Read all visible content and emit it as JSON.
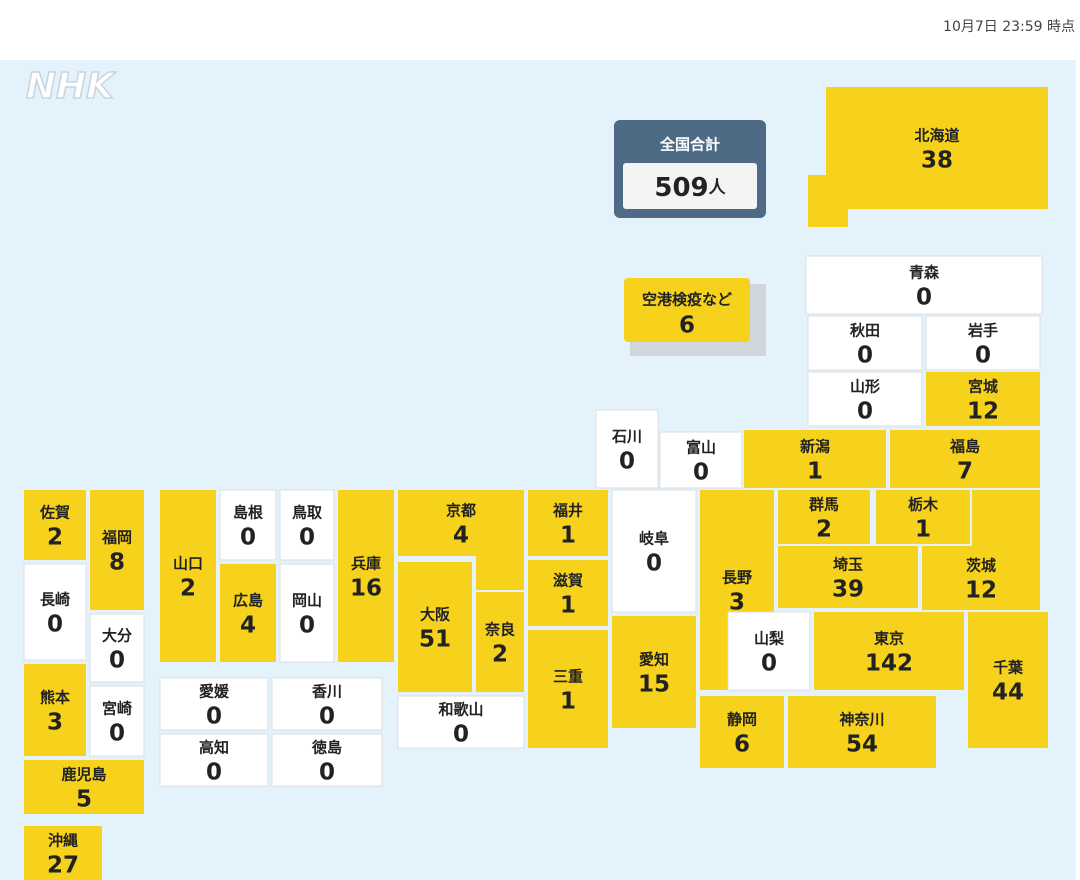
{
  "timestamp": "10月7日 23:59 時点",
  "logo": "NHK",
  "total": {
    "label": "全国合計",
    "count": 509,
    "unit": "人"
  },
  "airport": {
    "label": "空港検疫など",
    "count": 6
  },
  "prefectures": [
    {
      "name": "北海道",
      "count": 38
    },
    {
      "name": "青森",
      "count": 0
    },
    {
      "name": "秋田",
      "count": 0
    },
    {
      "name": "岩手",
      "count": 0
    },
    {
      "name": "山形",
      "count": 0
    },
    {
      "name": "宮城",
      "count": 12
    },
    {
      "name": "石川",
      "count": 0
    },
    {
      "name": "富山",
      "count": 0
    },
    {
      "name": "新潟",
      "count": 1
    },
    {
      "name": "福島",
      "count": 7
    },
    {
      "name": "群馬",
      "count": 2
    },
    {
      "name": "栃木",
      "count": 1
    },
    {
      "name": "茨城",
      "count": 12
    },
    {
      "name": "長野",
      "count": 3
    },
    {
      "name": "埼玉",
      "count": 39
    },
    {
      "name": "山梨",
      "count": 0
    },
    {
      "name": "東京",
      "count": 142
    },
    {
      "name": "千葉",
      "count": 44
    },
    {
      "name": "静岡",
      "count": 6
    },
    {
      "name": "神奈川",
      "count": 54
    },
    {
      "name": "岐阜",
      "count": 0
    },
    {
      "name": "愛知",
      "count": 15
    },
    {
      "name": "福井",
      "count": 1
    },
    {
      "name": "滋賀",
      "count": 1
    },
    {
      "name": "三重",
      "count": 1
    },
    {
      "name": "京都",
      "count": 4
    },
    {
      "name": "大阪",
      "count": 51
    },
    {
      "name": "奈良",
      "count": 2
    },
    {
      "name": "和歌山",
      "count": 0
    },
    {
      "name": "兵庫",
      "count": 16
    },
    {
      "name": "鳥取",
      "count": 0
    },
    {
      "name": "島根",
      "count": 0
    },
    {
      "name": "岡山",
      "count": 0
    },
    {
      "name": "広島",
      "count": 4
    },
    {
      "name": "山口",
      "count": 2
    },
    {
      "name": "愛媛",
      "count": 0
    },
    {
      "name": "香川",
      "count": 0
    },
    {
      "name": "高知",
      "count": 0
    },
    {
      "name": "徳島",
      "count": 0
    },
    {
      "name": "佐賀",
      "count": 2
    },
    {
      "name": "福岡",
      "count": 8
    },
    {
      "name": "長崎",
      "count": 0
    },
    {
      "name": "大分",
      "count": 0
    },
    {
      "name": "熊本",
      "count": 3
    },
    {
      "name": "宮崎",
      "count": 0
    },
    {
      "name": "鹿児島",
      "count": 5
    },
    {
      "name": "沖縄",
      "count": 27
    }
  ]
}
